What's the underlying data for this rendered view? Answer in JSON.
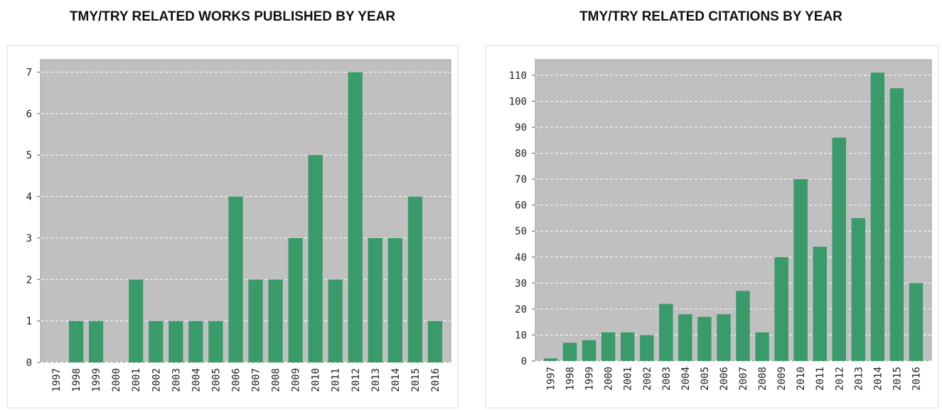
{
  "chart_data": [
    {
      "type": "bar",
      "title": "TMY/TRY RELATED WORKS PUBLISHED BY YEAR",
      "categories": [
        "1997",
        "1998",
        "1999",
        "2000",
        "2001",
        "2002",
        "2003",
        "2004",
        "2005",
        "2006",
        "2007",
        "2008",
        "2009",
        "2010",
        "2011",
        "2012",
        "2013",
        "2014",
        "2015",
        "2016"
      ],
      "values": [
        0,
        1,
        1,
        0,
        2,
        1,
        1,
        1,
        1,
        4,
        2,
        2,
        3,
        5,
        2,
        7,
        3,
        3,
        4,
        1
      ],
      "color": "#3a9b6a",
      "ylim": [
        0,
        7.3
      ],
      "yticks": [
        0,
        1,
        2,
        3,
        4,
        5,
        6,
        7
      ],
      "grid": true
    },
    {
      "type": "bar",
      "title": "TMY/TRY RELATED CITATIONS BY YEAR",
      "categories": [
        "1997",
        "1998",
        "1999",
        "2000",
        "2001",
        "2002",
        "2003",
        "2004",
        "2005",
        "2006",
        "2007",
        "2008",
        "2009",
        "2010",
        "2011",
        "2012",
        "2013",
        "2014",
        "2015",
        "2016"
      ],
      "values": [
        1,
        7,
        8,
        11,
        11,
        10,
        22,
        18,
        17,
        18,
        27,
        11,
        40,
        70,
        44,
        86,
        55,
        111,
        105,
        30
      ],
      "color": "#3a9b6a",
      "ylim": [
        0,
        116
      ],
      "yticks": [
        0,
        10,
        20,
        30,
        40,
        50,
        60,
        70,
        80,
        90,
        100,
        110
      ],
      "grid": true
    }
  ]
}
